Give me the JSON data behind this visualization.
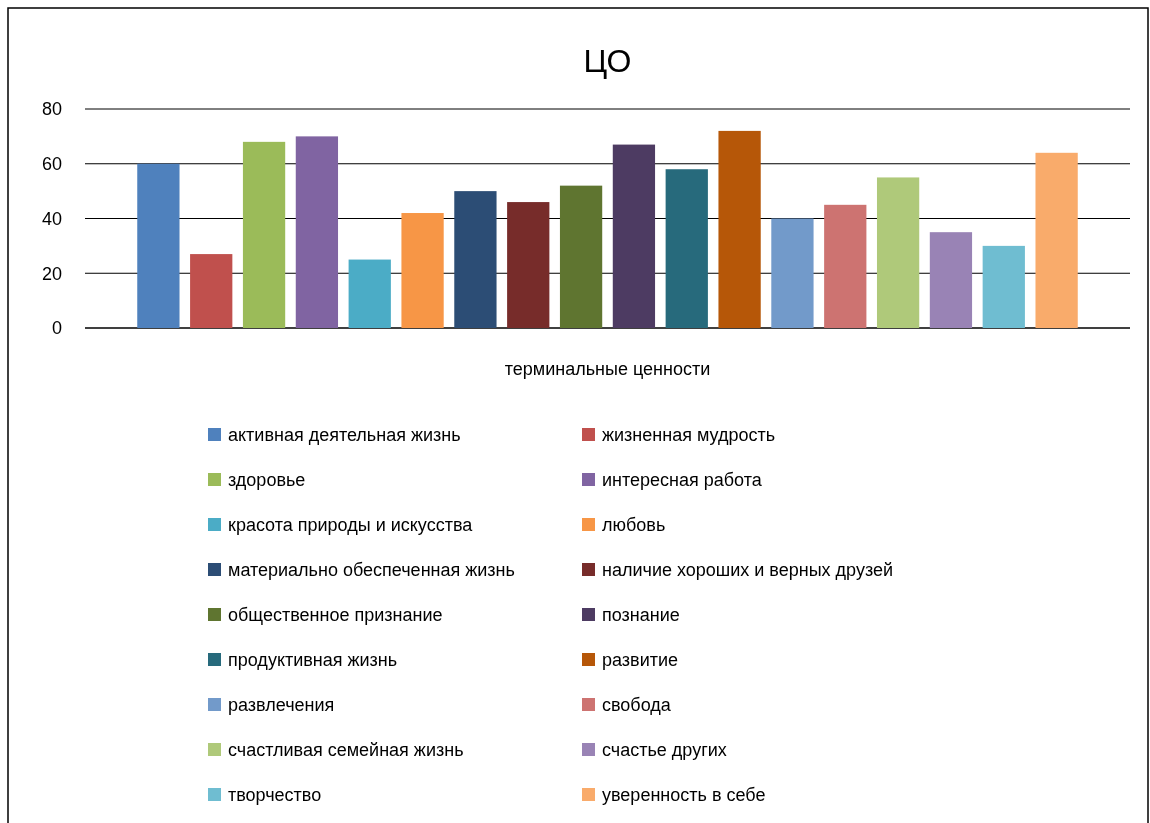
{
  "chart_data": {
    "type": "bar",
    "title": "ЦО",
    "categories": [
      "терминальные ценности"
    ],
    "ylim": [
      0,
      80
    ],
    "yticks": [
      0,
      20,
      40,
      60,
      80
    ],
    "grid": "y",
    "legend": "bottom",
    "series": [
      {
        "name": "активная деятельная жизнь",
        "color": "#4f81bd",
        "values": [
          60
        ]
      },
      {
        "name": "жизненная мудрость",
        "color": "#c0504d",
        "values": [
          27
        ]
      },
      {
        "name": "здоровье",
        "color": "#9bbb59",
        "values": [
          68
        ]
      },
      {
        "name": "интересная работа",
        "color": "#8064a2",
        "values": [
          70
        ]
      },
      {
        "name": "красота природы и искусства",
        "color": "#4bacc6",
        "values": [
          25
        ]
      },
      {
        "name": "любовь",
        "color": "#f79646",
        "values": [
          42
        ]
      },
      {
        "name": "материально обеспеченная жизнь",
        "color": "#2c4d75",
        "values": [
          50
        ]
      },
      {
        "name": "наличие хороших и верных друзей",
        "color": "#772c2a",
        "values": [
          46
        ]
      },
      {
        "name": "общественное признание",
        "color": "#5f7530",
        "values": [
          52
        ]
      },
      {
        "name": "познание",
        "color": "#4d3b62",
        "values": [
          67
        ]
      },
      {
        "name": "продуктивная жизнь",
        "color": "#276a7c",
        "values": [
          58
        ]
      },
      {
        "name": "развитие",
        "color": "#b65708",
        "values": [
          72
        ]
      },
      {
        "name": "развлечения",
        "color": "#729aca",
        "values": [
          40
        ]
      },
      {
        "name": "свобода",
        "color": "#cd7371",
        "values": [
          45
        ]
      },
      {
        "name": "счастливая семейная жизнь",
        "color": "#afc97a",
        "values": [
          55
        ]
      },
      {
        "name": "счастье других",
        "color": "#9983b5",
        "values": [
          35
        ]
      },
      {
        "name": "творчество",
        "color": "#6fbdd1",
        "values": [
          30
        ]
      },
      {
        "name": "уверенность в себе",
        "color": "#f9ab6b",
        "values": [
          64
        ]
      }
    ]
  }
}
